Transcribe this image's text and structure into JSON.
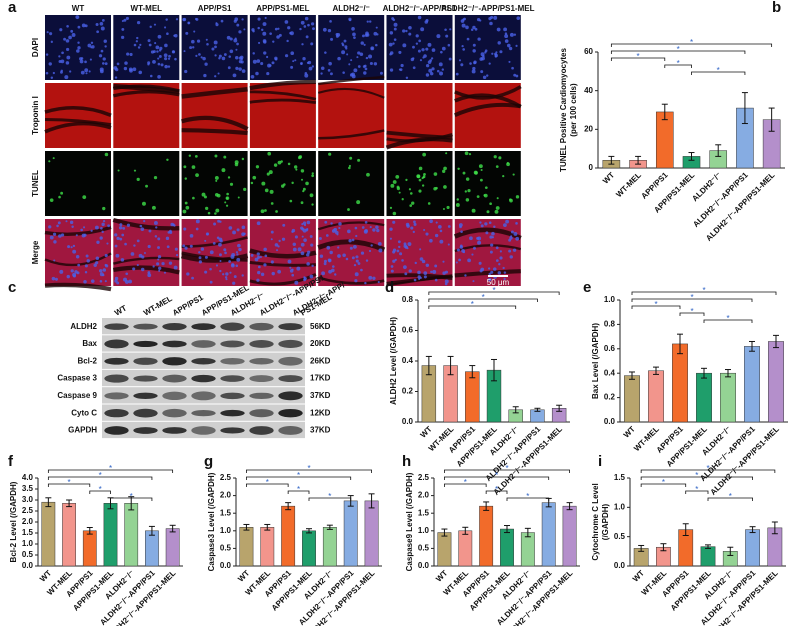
{
  "panel_a": {
    "label": "a",
    "columns": [
      "WT",
      "WT-MEL",
      "APP/PS1",
      "APP/PS1-MEL",
      "ALDH2⁻/⁻",
      "ALDH2⁻/⁻-APP/PS1",
      "ALDH2⁻/⁻-APP/PS1-MEL"
    ],
    "rows": [
      "DAPI",
      "Troponin I",
      "TUNEL",
      "Merge"
    ],
    "scale_bar": "50 μm"
  },
  "panel_c": {
    "label": "c",
    "columns": [
      "WT",
      "WT-MEL",
      "APP/PS1",
      "APP/PS1-MEL",
      "ALDH2⁻/⁻",
      "ALDH2⁻/⁻-APP/PS1",
      [
        "ALDH2⁻/⁻-APP/",
        "PS1-MEL"
      ]
    ],
    "proteins": [
      "ALDH2",
      "Bax",
      "Bcl-2",
      "Caspase 3",
      "Caspase 9",
      "Cyto C",
      "GAPDH"
    ],
    "sizes": [
      "56KD",
      "20KD",
      "26KD",
      "17KD",
      "37KD",
      "12KD",
      "37KD"
    ]
  },
  "chart_data": [
    {
      "type": "bar",
      "label": "b",
      "ylabel": [
        "TUNEL Positive Cardiomyocytes",
        "(per 100 cells)"
      ],
      "categories": [
        "WT",
        "WT-MEL",
        "APP/PS1",
        "APP/PS1-MEL",
        "ALDH2⁻/⁻",
        "ALDH2⁻/⁻-APP/PS1",
        "ALDH2⁻/⁻-APP/PS1-MEL"
      ],
      "colors": [
        "#b8a46c",
        "#f2958c",
        "#f26b2a",
        "#1f9e6b",
        "#94d394",
        "#86ace2",
        "#b48fcb"
      ],
      "values": [
        4,
        4,
        29,
        6,
        9,
        31,
        25
      ],
      "errors": [
        2,
        2,
        4,
        2,
        3,
        8,
        6
      ],
      "ylim": [
        0,
        60
      ],
      "yticks": [
        0,
        20,
        40,
        60
      ],
      "brackets": [
        {
          "from": 0,
          "to": 6,
          "label": "*"
        },
        {
          "from": 0,
          "to": 5,
          "label": "*"
        },
        {
          "from": 0,
          "to": 2,
          "label": "*"
        },
        {
          "from": 2,
          "to": 3,
          "label": "*"
        },
        {
          "from": 3,
          "to": 5,
          "label": "*"
        }
      ]
    },
    {
      "type": "bar",
      "label": "d",
      "ylabel": "ALDH2 Level (/GAPDH)",
      "categories": [
        "WT",
        "WT-MEL",
        "APP/PS1",
        "APP/PS1-MEL",
        "ALDH2⁻/⁻",
        "ALDH2⁻/⁻-APP/PS1",
        "ALDH2⁻/⁻-APP/PS1-MEL"
      ],
      "colors": [
        "#b8a46c",
        "#f2958c",
        "#f26b2a",
        "#1f9e6b",
        "#94d394",
        "#86ace2",
        "#b48fcb"
      ],
      "values": [
        0.37,
        0.37,
        0.33,
        0.34,
        0.08,
        0.08,
        0.09
      ],
      "errors": [
        0.06,
        0.06,
        0.04,
        0.07,
        0.02,
        0.01,
        0.02
      ],
      "ylim": [
        0,
        0.8
      ],
      "yticks": [
        {
          "value": 0,
          "label": "0.0"
        },
        0.2,
        0.4,
        0.6,
        0.8
      ],
      "brackets": [
        {
          "from": 0,
          "to": 6,
          "label": "*"
        },
        {
          "from": 0,
          "to": 5,
          "label": "*"
        },
        {
          "from": 0,
          "to": 4,
          "label": "*"
        }
      ]
    },
    {
      "type": "bar",
      "label": "e",
      "ylabel": "Bax Level (/GAPDH)",
      "categories": [
        "WT",
        "WT-MEL",
        "APP/PS1",
        "APP/PS1-MEL",
        "ALDH2⁻/⁻",
        "ALDH2⁻/⁻-APP/PS1",
        "ALDH2⁻/⁻-APP/PS1-MEL"
      ],
      "colors": [
        "#b8a46c",
        "#f2958c",
        "#f26b2a",
        "#1f9e6b",
        "#94d394",
        "#86ace2",
        "#b48fcb"
      ],
      "values": [
        0.38,
        0.42,
        0.64,
        0.4,
        0.4,
        0.62,
        0.66
      ],
      "errors": [
        0.03,
        0.03,
        0.08,
        0.04,
        0.03,
        0.04,
        0.05
      ],
      "ylim": [
        0,
        1
      ],
      "yticks": [
        {
          "value": 0,
          "label": "0.0"
        },
        0.2,
        0.4,
        0.6,
        0.8,
        {
          "value": 1,
          "label": "1.0"
        }
      ],
      "brackets": [
        {
          "from": 0,
          "to": 6,
          "label": "*"
        },
        {
          "from": 0,
          "to": 5,
          "label": "*"
        },
        {
          "from": 0,
          "to": 2,
          "label": "*"
        },
        {
          "from": 2,
          "to": 3,
          "label": "*"
        },
        {
          "from": 3,
          "to": 5,
          "label": "*"
        }
      ]
    },
    {
      "type": "bar",
      "label": "f",
      "ylabel": "Bcl-2 Level (/GAPDH)",
      "categories": [
        "WT",
        "WT-MEL",
        "APP/PS1",
        "APP/PS1-MEL",
        "ALDH2⁻/⁻",
        "ALDH2⁻/⁻-APP/PS1",
        "ALDH2⁻/⁻-APP/PS1-MEL"
      ],
      "colors": [
        "#b8a46c",
        "#f2958c",
        "#f26b2a",
        "#1f9e6b",
        "#94d394",
        "#86ace2",
        "#b48fcb"
      ],
      "values": [
        2.9,
        2.85,
        1.6,
        2.85,
        2.85,
        1.6,
        1.7
      ],
      "errors": [
        0.2,
        0.15,
        0.15,
        0.25,
        0.3,
        0.2,
        0.15
      ],
      "ylim": [
        0,
        4
      ],
      "yticks": [
        {
          "value": 0,
          "label": "0.0"
        },
        0.5,
        {
          "value": 1,
          "label": "1.0"
        },
        1.5,
        {
          "value": 2,
          "label": "2.0"
        },
        2.5,
        {
          "value": 3,
          "label": "3.0"
        },
        3.5,
        {
          "value": 4,
          "label": "4.0"
        }
      ],
      "brackets": [
        {
          "from": 0,
          "to": 6,
          "label": "*"
        },
        {
          "from": 0,
          "to": 5,
          "label": "*"
        },
        {
          "from": 0,
          "to": 2,
          "label": "*"
        },
        {
          "from": 2,
          "to": 3,
          "label": "*"
        },
        {
          "from": 3,
          "to": 5,
          "label": "*"
        }
      ]
    },
    {
      "type": "bar",
      "label": "g",
      "ylabel": "Caspase3 Level (/GAPDH)",
      "categories": [
        "WT",
        "WT-MEL",
        "APP/PS1",
        "APP/PS1-MEL",
        "ALDH2⁻/⁻",
        "ALDH2⁻/⁻-APP/PS1",
        "ALDH2⁻/⁻-APP/PS1-MEL"
      ],
      "colors": [
        "#b8a46c",
        "#f2958c",
        "#f26b2a",
        "#1f9e6b",
        "#94d394",
        "#86ace2",
        "#b48fcb"
      ],
      "values": [
        1.1,
        1.1,
        1.7,
        1.0,
        1.1,
        1.85,
        1.85
      ],
      "errors": [
        0.08,
        0.08,
        0.1,
        0.06,
        0.06,
        0.15,
        0.2
      ],
      "ylim": [
        0,
        2.5
      ],
      "yticks": [
        {
          "value": 0,
          "label": "0.0"
        },
        0.5,
        {
          "value": 1,
          "label": "1.0"
        },
        1.5,
        {
          "value": 2,
          "label": "2.0"
        },
        2.5
      ],
      "brackets": [
        {
          "from": 0,
          "to": 6,
          "label": "*"
        },
        {
          "from": 0,
          "to": 5,
          "label": "*"
        },
        {
          "from": 0,
          "to": 2,
          "label": "*"
        },
        {
          "from": 2,
          "to": 3,
          "label": "*"
        },
        {
          "from": 3,
          "to": 5,
          "label": "*"
        }
      ]
    },
    {
      "type": "bar",
      "label": "h",
      "ylabel": "Caspase9 Level (/GAPDH)",
      "categories": [
        "WT",
        "WT-MEL",
        "APP/PS1",
        "APP/PS1-MEL",
        "ALDH2⁻/⁻",
        "ALDH2⁻/⁻-APP/PS1",
        "ALDH2⁻/⁻-APP/PS1-MEL"
      ],
      "colors": [
        "#b8a46c",
        "#f2958c",
        "#f26b2a",
        "#1f9e6b",
        "#94d394",
        "#86ace2",
        "#b48fcb"
      ],
      "values": [
        0.95,
        1.0,
        1.7,
        1.05,
        0.95,
        1.8,
        1.7
      ],
      "errors": [
        0.1,
        0.1,
        0.12,
        0.1,
        0.12,
        0.12,
        0.1
      ],
      "ylim": [
        0,
        2.5
      ],
      "yticks": [
        {
          "value": 0,
          "label": "0.0"
        },
        0.5,
        {
          "value": 1,
          "label": "1.0"
        },
        1.5,
        {
          "value": 2,
          "label": "2.0"
        },
        2.5
      ],
      "brackets": [
        {
          "from": 0,
          "to": 6,
          "label": "*"
        },
        {
          "from": 0,
          "to": 5,
          "label": "*"
        },
        {
          "from": 0,
          "to": 2,
          "label": "*"
        },
        {
          "from": 2,
          "to": 3,
          "label": "*"
        },
        {
          "from": 3,
          "to": 5,
          "label": "*"
        }
      ]
    },
    {
      "type": "bar",
      "label": "i",
      "ylabel": [
        "Cytochrome C Level",
        "(/GAPDH)"
      ],
      "categories": [
        "WT",
        "WT-MEL",
        "APP/PS1",
        "APP/PS1-MEL",
        "ALDH2⁻/⁻",
        "ALDH2⁻/⁻-APP/PS1",
        "ALDH2⁻/⁻-APP/PS1-MEL"
      ],
      "colors": [
        "#b8a46c",
        "#f2958c",
        "#f26b2a",
        "#1f9e6b",
        "#94d394",
        "#86ace2",
        "#b48fcb"
      ],
      "values": [
        0.3,
        0.32,
        0.62,
        0.33,
        0.25,
        0.62,
        0.65
      ],
      "errors": [
        0.05,
        0.06,
        0.1,
        0.03,
        0.07,
        0.05,
        0.1
      ],
      "ylim": [
        0,
        1.5
      ],
      "yticks": [
        {
          "value": 0,
          "label": "0.0"
        },
        0.5,
        {
          "value": 1,
          "label": "1.0"
        },
        1.5
      ],
      "brackets": [
        {
          "from": 0,
          "to": 6,
          "label": "*"
        },
        {
          "from": 0,
          "to": 5,
          "label": "*"
        },
        {
          "from": 0,
          "to": 2,
          "label": "*"
        },
        {
          "from": 2,
          "to": 3,
          "label": "*"
        },
        {
          "from": 3,
          "to": 5,
          "label": "*"
        }
      ]
    }
  ]
}
